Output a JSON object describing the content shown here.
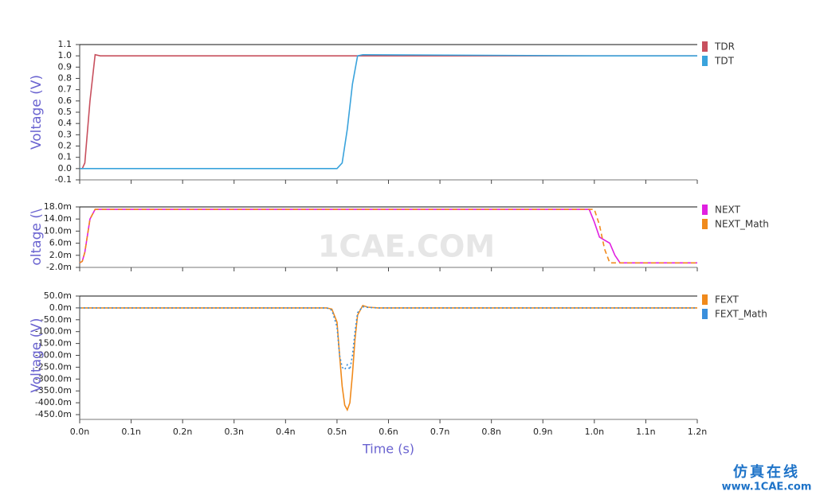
{
  "chart_data": [
    {
      "type": "line",
      "ylabel": "Voltage (V)",
      "x": [
        0,
        0.005,
        0.01,
        0.02,
        0.03,
        0.04,
        0.49,
        0.5,
        0.51,
        0.52,
        0.53,
        0.54,
        0.55,
        1.0,
        1.05,
        1.2
      ],
      "series": [
        {
          "name": "TDR",
          "color": "#c8505e",
          "line_style": "solid",
          "values": [
            0,
            0,
            0.05,
            0.6,
            1.01,
            1,
            1,
            1,
            1,
            1,
            1,
            1,
            1,
            1,
            1,
            1
          ]
        },
        {
          "name": "TDT",
          "color": "#3aa3dc",
          "line_style": "solid",
          "values": [
            0,
            0,
            0,
            0,
            0,
            0,
            0,
            0,
            0.05,
            0.35,
            0.75,
            1.0,
            1.01,
            1.0,
            1.0,
            1.0
          ]
        }
      ],
      "xlim": [
        0,
        1.2
      ],
      "ylim": [
        -0.1,
        1.1
      ],
      "yticks": [
        1.1,
        {
          "value": 1,
          "label": "1.0"
        },
        0.9,
        0.8,
        0.7,
        0.6,
        0.5,
        0.4,
        0.3,
        0.2,
        0.1,
        {
          "value": 0,
          "label": "0.0"
        },
        -0.1
      ]
    },
    {
      "type": "line",
      "ylabel": "oltage (\\",
      "x": [
        0,
        0.005,
        0.01,
        0.02,
        0.03,
        0.035,
        0.98,
        0.99,
        1.0,
        1.01,
        1.02,
        1.03,
        1.04,
        1.05,
        1.2
      ],
      "series": [
        {
          "name": "NEXT",
          "color": "#e020e0",
          "line_style": "solid",
          "values": [
            -0.5,
            0,
            3,
            14,
            17.2,
            17.2,
            17.2,
            17.2,
            13,
            8,
            7,
            6,
            2,
            -0.5,
            -0.5
          ]
        },
        {
          "name": "NEXT_Math",
          "color": "#f08a1c",
          "line_style": "dashed",
          "values": [
            -0.5,
            0,
            3,
            14,
            17.2,
            17.2,
            17.2,
            17.2,
            17.2,
            12,
            4,
            -0.5,
            -0.5,
            -0.5,
            -0.5
          ]
        }
      ],
      "xlim": [
        0,
        1.2
      ],
      "ylim": [
        -2,
        18
      ],
      "yticks": [
        {
          "value": 18,
          "label": "18.0m"
        },
        {
          "value": 14,
          "label": "14.0m"
        },
        {
          "value": 10,
          "label": "10.0m"
        },
        {
          "value": 6,
          "label": "6.0m"
        },
        {
          "value": 2,
          "label": "2.0m"
        },
        {
          "value": -2,
          "label": "-2.0m"
        }
      ]
    },
    {
      "type": "line",
      "ylabel": "Voltage (V)",
      "xlabel": "Time (s)",
      "x": [
        0,
        0.48,
        0.49,
        0.5,
        0.505,
        0.51,
        0.515,
        0.52,
        0.525,
        0.53,
        0.535,
        0.54,
        0.55,
        0.56,
        0.58,
        1.2
      ],
      "series": [
        {
          "name": "FEXT",
          "color": "#f08a1c",
          "line_style": "solid",
          "values": [
            0,
            0,
            -5,
            -60,
            -200,
            -330,
            -410,
            -430,
            -400,
            -280,
            -130,
            -30,
            10,
            3,
            0,
            0
          ]
        },
        {
          "name": "FEXT_Math",
          "color": "#3a8fdc",
          "line_style": "dotted",
          "values": [
            0,
            0,
            -10,
            -80,
            -200,
            -250,
            -260,
            -240,
            -260,
            -200,
            -100,
            -20,
            5,
            2,
            0,
            0
          ]
        }
      ],
      "xlim": [
        0,
        1.2
      ],
      "ylim": [
        -450,
        50
      ],
      "yticks": [
        {
          "value": 50,
          "label": "50.0m"
        },
        {
          "value": 0,
          "label": "0.0m"
        },
        {
          "value": -50,
          "label": "-50.0m"
        },
        {
          "value": -100,
          "label": "-100.0m"
        },
        {
          "value": -150,
          "label": "-150.0m"
        },
        {
          "value": -200,
          "label": "-200.0m"
        },
        {
          "value": -250,
          "label": "-250.0m"
        },
        {
          "value": -300,
          "label": "-300.0m"
        },
        {
          "value": -350,
          "label": "-350.0m"
        },
        {
          "value": -400,
          "label": "-400.0m"
        },
        {
          "value": -450,
          "label": "-450.0m"
        }
      ],
      "xticks": [
        {
          "value": 0,
          "label": "0.0n"
        },
        {
          "value": 0.1,
          "label": "0.1n"
        },
        {
          "value": 0.2,
          "label": "0.2n"
        },
        {
          "value": 0.3,
          "label": "0.3n"
        },
        {
          "value": 0.4,
          "label": "0.4n"
        },
        {
          "value": 0.5,
          "label": "0.5n"
        },
        {
          "value": 0.6,
          "label": "0.6n"
        },
        {
          "value": 0.7,
          "label": "0.7n"
        },
        {
          "value": 0.8,
          "label": "0.8n"
        },
        {
          "value": 0.9,
          "label": "0.9n"
        },
        {
          "value": 1.0,
          "label": "1.0n"
        },
        {
          "value": 1.1,
          "label": "1.1n"
        },
        {
          "value": 1.2,
          "label": "1.2n"
        }
      ]
    }
  ],
  "watermark": {
    "center": "1CAE.COM",
    "brand": "仿真在线",
    "url": "www.1CAE.com"
  }
}
